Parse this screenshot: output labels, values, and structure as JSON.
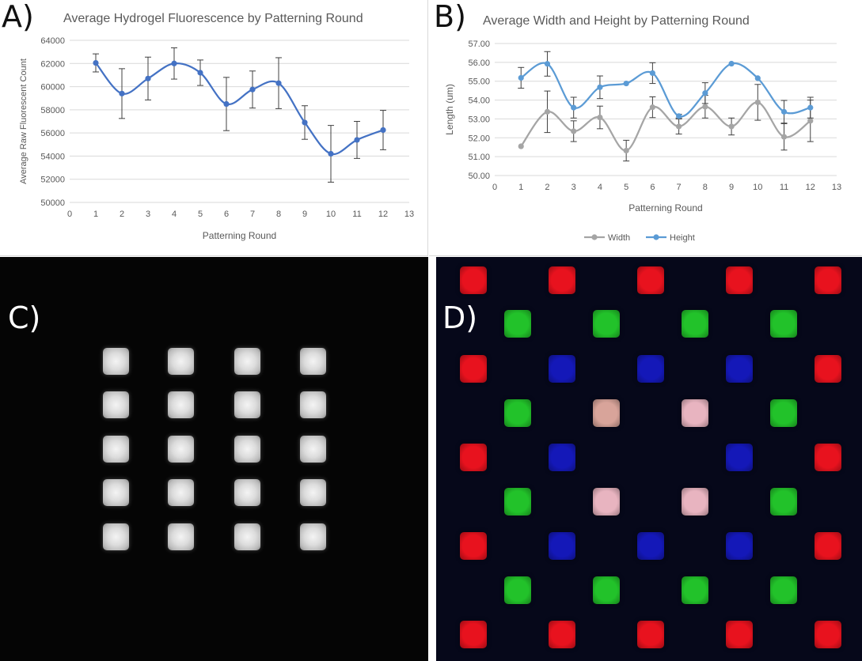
{
  "panels": {
    "a_letter": "A)",
    "b_letter": "B)",
    "c_letter": "C)",
    "d_letter": "D)"
  },
  "chart_data": [
    {
      "type": "line",
      "title": "Average Hydrogel Fluorescence by Patterning Round",
      "xlabel": "Patterning Round",
      "ylabel": "Average Raw Fluorescent Count",
      "xlim": [
        0,
        13
      ],
      "ylim": [
        50000,
        64000
      ],
      "x_ticks": [
        "0",
        "1",
        "2",
        "3",
        "4",
        "5",
        "6",
        "7",
        "8",
        "9",
        "10",
        "11",
        "12",
        "13"
      ],
      "y_ticks": [
        "50000",
        "52000",
        "54000",
        "56000",
        "58000",
        "60000",
        "62000",
        "64000"
      ],
      "grid": true,
      "color": "#4472c4",
      "x": [
        1,
        2,
        3,
        4,
        5,
        6,
        7,
        8,
        9,
        10,
        11,
        12
      ],
      "values": [
        62050,
        59400,
        60700,
        62000,
        61200,
        58500,
        59750,
        60300,
        56900,
        54200,
        55400,
        56250
      ],
      "errors": [
        780,
        2150,
        1850,
        1350,
        1100,
        2300,
        1600,
        2200,
        1450,
        2450,
        1600,
        1700
      ]
    },
    {
      "type": "line",
      "title": "Average Width and Height by Patterning Round",
      "xlabel": "Patterning Round",
      "ylabel": "Length (um)",
      "xlim": [
        0,
        13
      ],
      "ylim": [
        50,
        57
      ],
      "x_ticks": [
        "0",
        "1",
        "2",
        "3",
        "4",
        "5",
        "6",
        "7",
        "8",
        "9",
        "10",
        "11",
        "12",
        "13"
      ],
      "y_ticks": [
        "50.00",
        "51.00",
        "52.00",
        "53.00",
        "54.00",
        "55.00",
        "56.00",
        "57.00"
      ],
      "grid": true,
      "legend_position": "bottom",
      "x": [
        1,
        2,
        3,
        4,
        5,
        6,
        7,
        8,
        9,
        10,
        11,
        12
      ],
      "series": [
        {
          "name": "Width",
          "color": "#a5a5a5",
          "values": [
            51.55,
            53.38,
            52.35,
            53.08,
            51.32,
            53.62,
            52.6,
            53.65,
            52.6,
            53.88,
            52.05,
            52.9
          ],
          "errors": [
            0,
            1.1,
            0.55,
            0.6,
            0.55,
            0.55,
            0.4,
            0.6,
            0.45,
            0.95,
            0.7,
            1.1
          ]
        },
        {
          "name": "Height",
          "color": "#5b9bd5",
          "values": [
            55.18,
            55.92,
            53.6,
            54.68,
            54.88,
            55.43,
            53.15,
            54.37,
            55.93,
            55.16,
            53.38,
            53.6
          ],
          "errors": [
            0.55,
            0.65,
            0.55,
            0.6,
            0,
            0.55,
            0.1,
            0.55,
            0,
            0,
            0.6,
            0.55
          ]
        }
      ]
    }
  ],
  "image_c": {
    "description_rows": 5,
    "cols": 4
  },
  "image_d": {
    "colors": {
      "red": "#e8121e",
      "green": "#22c22a",
      "blue": "#1418b8",
      "pink": "#e8b4c0",
      "peach": "#d8a49a"
    }
  }
}
